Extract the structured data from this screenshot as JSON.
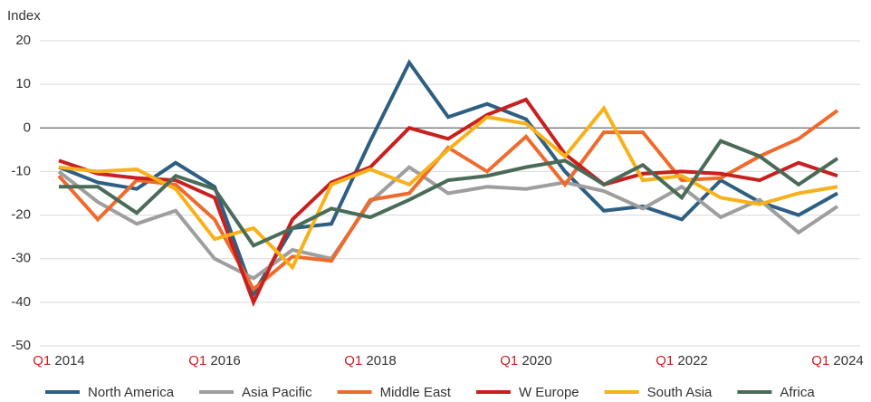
{
  "chart_data": {
    "type": "line",
    "ylabel": "Index",
    "categories": [
      "Q1 2014",
      null,
      null,
      null,
      "Q1 2016",
      null,
      null,
      null,
      "Q1 2018",
      null,
      null,
      null,
      "Q1 2020",
      null,
      null,
      null,
      "Q1 2022",
      null,
      null,
      null,
      "Q1 2024"
    ],
    "ylim": [
      -50,
      20
    ],
    "yticks": [
      -50,
      -40,
      -30,
      -20,
      -10,
      0,
      10,
      20
    ],
    "grid": true,
    "legend": "bottom",
    "series": [
      {
        "name": "North America",
        "color": "#2e5f82",
        "values": [
          -9,
          -12.5,
          -14,
          -8,
          -13.5,
          -38,
          -23,
          -22,
          -3,
          15,
          2.5,
          5.5,
          2,
          -10,
          -19,
          -18,
          -21,
          -12,
          -17,
          -20,
          -15
        ]
      },
      {
        "name": "Asia Pacific",
        "color": "#9e9e9e",
        "values": [
          -10,
          -17,
          -22,
          -19,
          -30,
          -34.5,
          -28,
          -30,
          -17,
          -9,
          -15,
          -13.5,
          -14,
          -12.5,
          -14.5,
          -18.5,
          -13.5,
          -20.5,
          -16.5,
          -24,
          -18
        ]
      },
      {
        "name": "Middle East",
        "color": "#ed6b2d",
        "values": [
          -11,
          -21,
          -12,
          -13,
          -21,
          -37,
          -29.5,
          -30.5,
          -16.5,
          -15,
          -4.5,
          -10,
          -2,
          -13,
          -1,
          -1,
          -12,
          -11.5,
          -6.5,
          -2.5,
          4
        ]
      },
      {
        "name": "W Europe",
        "color": "#c8201f",
        "values": [
          -7.5,
          -10.5,
          -11.5,
          -12,
          -16,
          -40,
          -21,
          -12.5,
          -9,
          0,
          -2.5,
          3,
          6.5,
          -6,
          -13,
          -10.5,
          -10,
          -10.5,
          -12,
          -8,
          -11
        ]
      },
      {
        "name": "South Asia",
        "color": "#f6b11b",
        "values": [
          -9,
          -10,
          -9.5,
          -14,
          -25.5,
          -23,
          -32,
          -13,
          -9.5,
          -13,
          -5,
          2.5,
          1,
          -6.5,
          4.5,
          -12,
          -11,
          -16,
          -17.5,
          -15,
          -13.5
        ]
      },
      {
        "name": "Africa",
        "color": "#4a6b57",
        "values": [
          -13.5,
          -13.5,
          -19.5,
          -11,
          -14,
          -27,
          -23,
          -18.5,
          -20.5,
          -16.5,
          -12,
          -11,
          -9,
          -7.5,
          -13,
          -8.5,
          -16,
          -3,
          -6.5,
          -13,
          -7
        ]
      }
    ]
  }
}
